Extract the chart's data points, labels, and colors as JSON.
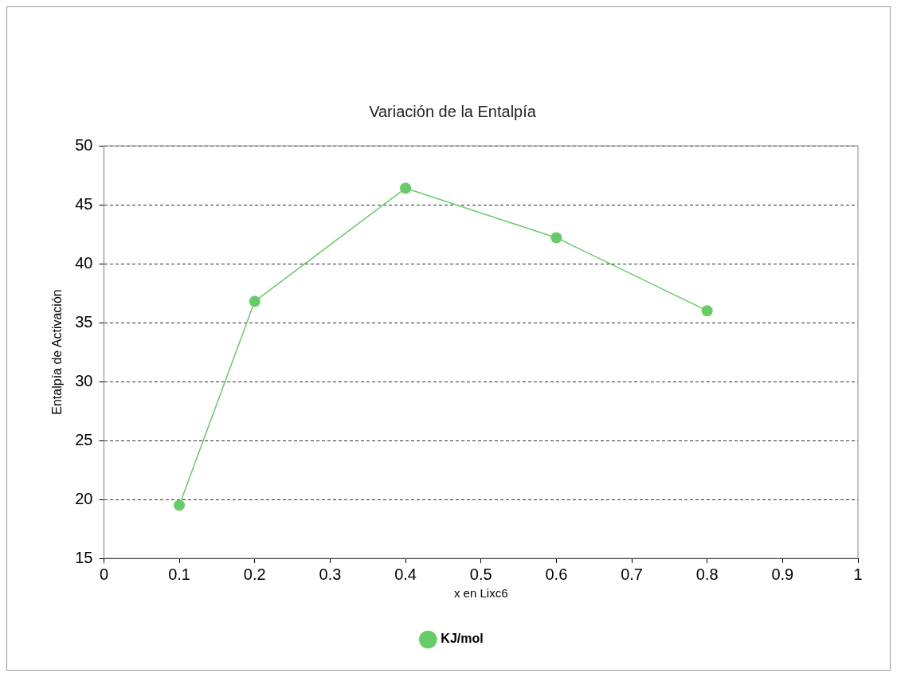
{
  "chart_data": {
    "type": "line",
    "title": "Variación de la Entalpía",
    "xlabel": "x en Lixc6",
    "ylabel": "Entalpía de Activación",
    "x": [
      0.1,
      0.2,
      0.4,
      0.6,
      0.8
    ],
    "series": [
      {
        "name": "KJ/mol",
        "color": "#66cc66",
        "values": [
          19.5,
          36.8,
          46.4,
          42.2,
          36
        ]
      }
    ],
    "xlim": [
      0,
      1
    ],
    "xticks": [
      0,
      0.1,
      0.2,
      0.3,
      0.4,
      0.5,
      0.6,
      0.7,
      0.8,
      0.9,
      1
    ],
    "ylim": [
      15,
      50
    ],
    "yticks": [
      15,
      20,
      25,
      30,
      35,
      40,
      45,
      50
    ],
    "grid": "y",
    "legend": "bottom",
    "marker": "circle",
    "line_style": "solid"
  }
}
